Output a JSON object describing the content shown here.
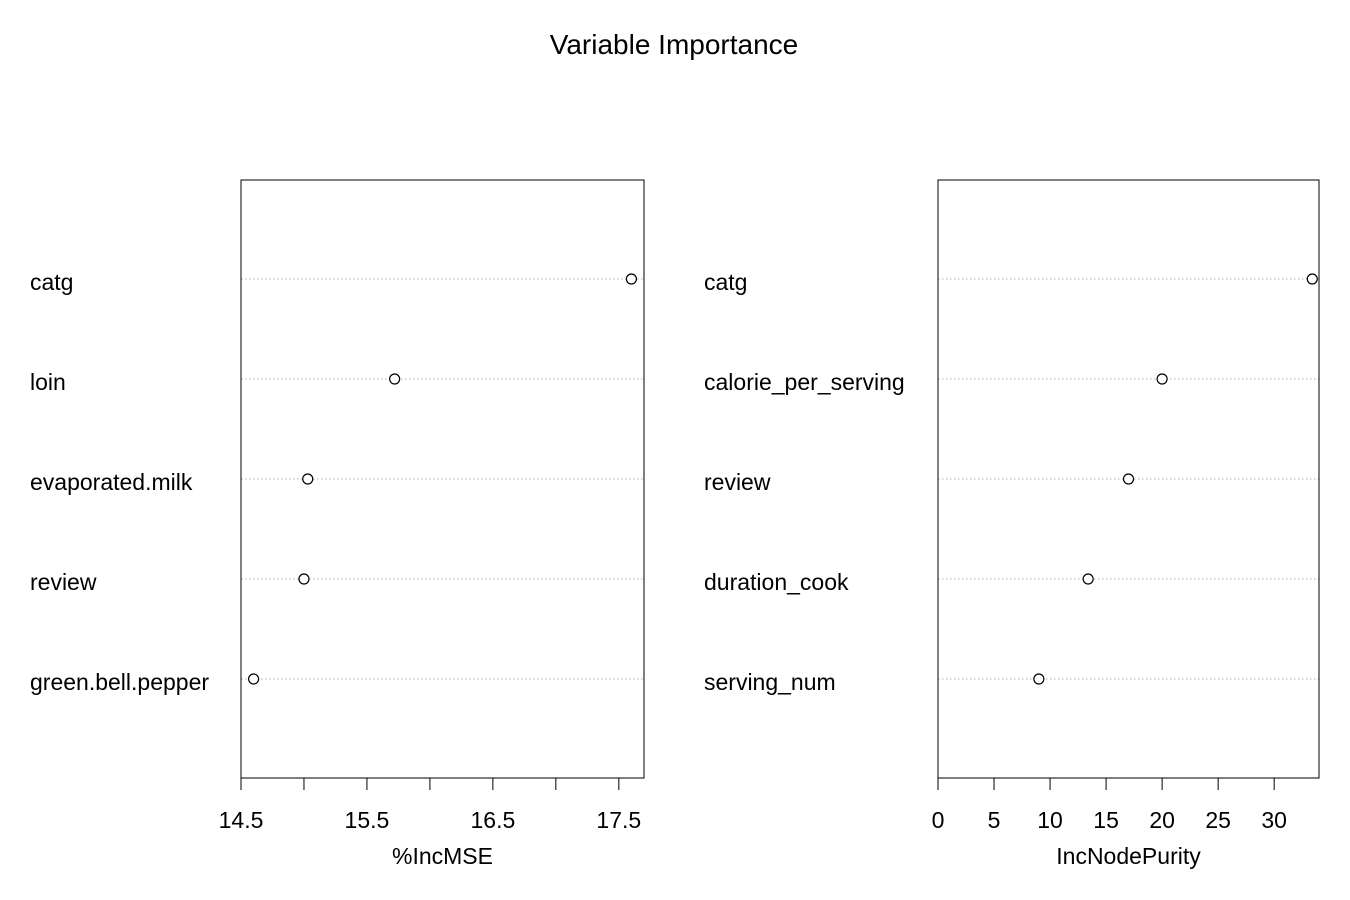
{
  "title": "Variable Importance",
  "chart_data": [
    {
      "type": "scatter",
      "xlabel": "%IncMSE",
      "categories": [
        "catg",
        "loin",
        "evaporated.milk",
        "review",
        "green.bell.pepper"
      ],
      "values": [
        17.6,
        15.72,
        15.03,
        15.0,
        14.6
      ],
      "xlim": [
        14.5,
        17.7
      ],
      "xticks": [
        14.5,
        15.0,
        15.5,
        16.0,
        16.5,
        17.0,
        17.5
      ],
      "xtick_labels": [
        "14.5",
        "",
        "15.5",
        "",
        "16.5",
        "",
        "17.5"
      ],
      "grid": "horizontal dotted"
    },
    {
      "type": "scatter",
      "xlabel": "IncNodePurity",
      "categories": [
        "catg",
        "calorie_per_serving",
        "review",
        "duration_cook",
        "serving_num"
      ],
      "values": [
        33.4,
        20.0,
        17.0,
        13.4,
        9.0
      ],
      "xlim": [
        0,
        34
      ],
      "xticks": [
        0,
        5,
        10,
        15,
        20,
        25,
        30
      ],
      "xtick_labels": [
        "0",
        "5",
        "10",
        "15",
        "20",
        "25",
        "30"
      ],
      "grid": "horizontal dotted"
    }
  ]
}
